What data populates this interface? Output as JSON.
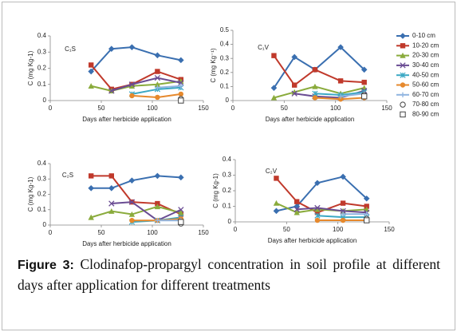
{
  "chart_data": [
    {
      "type": "line",
      "title": "C₁S",
      "y_label": "C (mg Kg-1)",
      "x_label": "Days after herbicide application",
      "x": [
        40,
        60,
        80,
        105,
        128
      ],
      "xlim": [
        0,
        150
      ],
      "xticks": [
        0,
        50,
        100,
        150
      ],
      "ylim": [
        0,
        0.4
      ],
      "yticks": [
        0,
        0.1,
        0.2,
        0.3,
        0.4
      ],
      "series": [
        {
          "name": "0-10 cm",
          "color": "#3a6fb0",
          "marker": "diamond",
          "values": [
            0.18,
            0.32,
            0.33,
            0.28,
            0.25
          ]
        },
        {
          "name": "10-20 cm",
          "color": "#c0392b",
          "marker": "square",
          "values": [
            0.22,
            0.07,
            0.1,
            0.18,
            0.13
          ]
        },
        {
          "name": "20-30 cm",
          "color": "#8aab3c",
          "marker": "triangle",
          "values": [
            0.09,
            0.06,
            0.09,
            0.1,
            0.12
          ]
        },
        {
          "name": "30-40 cm",
          "color": "#6a4c93",
          "marker": "x",
          "values": [
            null,
            0.06,
            0.1,
            0.14,
            0.11
          ]
        },
        {
          "name": "40-50 cm",
          "color": "#3ba8c4",
          "marker": "star",
          "values": [
            null,
            null,
            0.04,
            0.07,
            0.08
          ]
        },
        {
          "name": "50-60 cm",
          "color": "#e6892d",
          "marker": "circle",
          "values": [
            null,
            null,
            0.03,
            0.02,
            0.04
          ]
        },
        {
          "name": "60-70 cm",
          "color": "#8fb4e0",
          "marker": "plus",
          "values": [
            null,
            null,
            null,
            0.08,
            0.09
          ]
        },
        {
          "name": "70-80 cm",
          "color": "#444444",
          "marker": "open-circle",
          "values": [
            null,
            null,
            null,
            null,
            0.01
          ]
        },
        {
          "name": "80-90 cm",
          "color": "#444444",
          "marker": "open-square",
          "values": [
            null,
            null,
            null,
            null,
            0.0
          ]
        }
      ]
    },
    {
      "type": "line",
      "title": "C₁V",
      "y_label": "C (mg Kg⁻¹)",
      "x_label": "Days after herbicide application",
      "x": [
        40,
        60,
        80,
        105,
        128
      ],
      "xlim": [
        0,
        150
      ],
      "xticks": [
        0,
        50,
        100,
        150
      ],
      "ylim": [
        0,
        0.5
      ],
      "yticks": [
        0,
        0.1,
        0.2,
        0.3,
        0.4,
        0.5
      ],
      "series": [
        {
          "values": [
            0.09,
            0.31,
            0.22,
            0.38,
            0.22
          ]
        },
        {
          "values": [
            0.32,
            0.11,
            0.22,
            0.14,
            0.13
          ]
        },
        {
          "values": [
            0.02,
            0.06,
            0.1,
            0.05,
            0.09
          ]
        },
        {
          "values": [
            null,
            0.05,
            0.03,
            0.02,
            0.07
          ]
        },
        {
          "values": [
            null,
            null,
            0.05,
            0.04,
            0.06
          ]
        },
        {
          "values": [
            null,
            null,
            0.02,
            0.01,
            0.02
          ]
        },
        {
          "values": [
            null,
            null,
            null,
            0.03,
            0.05
          ]
        },
        {
          "values": [
            null,
            null,
            null,
            null,
            0.04
          ]
        },
        {
          "values": [
            null,
            null,
            null,
            null,
            0.03
          ]
        }
      ]
    },
    {
      "type": "line",
      "title": "C₂S",
      "y_label": "C (mg Kg-1)",
      "x_label": "Days after herbicide application",
      "x": [
        40,
        60,
        80,
        105,
        128
      ],
      "xlim": [
        0,
        150
      ],
      "xticks": [
        0,
        50,
        100,
        150
      ],
      "ylim": [
        0,
        0.4
      ],
      "yticks": [
        0,
        0.1,
        0.2,
        0.3,
        0.4
      ],
      "series": [
        {
          "values": [
            0.24,
            0.24,
            0.29,
            0.32,
            0.31
          ]
        },
        {
          "values": [
            0.32,
            0.32,
            0.15,
            0.14,
            0.07
          ]
        },
        {
          "values": [
            0.05,
            0.09,
            0.07,
            0.12,
            0.08
          ]
        },
        {
          "values": [
            null,
            0.14,
            0.15,
            0.03,
            0.1
          ]
        },
        {
          "values": [
            null,
            null,
            0.02,
            0.03,
            0.05
          ]
        },
        {
          "values": [
            null,
            null,
            0.03,
            0.03,
            0.04
          ]
        },
        {
          "values": [
            null,
            null,
            null,
            0.03,
            0.03
          ]
        },
        {
          "values": [
            null,
            null,
            null,
            null,
            0.01
          ]
        },
        {
          "values": [
            null,
            null,
            null,
            null,
            0.02
          ]
        }
      ]
    },
    {
      "type": "line",
      "title": "C₂V",
      "y_label": "C (mg Kg-1)",
      "x_label": "Days after herbicide application",
      "x": [
        40,
        60,
        80,
        105,
        128
      ],
      "xlim": [
        0,
        150
      ],
      "xticks": [
        0,
        50,
        100,
        150
      ],
      "ylim": [
        0,
        0.4
      ],
      "yticks": [
        0,
        0.1,
        0.2,
        0.3,
        0.4
      ],
      "series": [
        {
          "values": [
            0.07,
            0.1,
            0.25,
            0.29,
            0.15
          ]
        },
        {
          "values": [
            0.28,
            0.13,
            0.06,
            0.12,
            0.1
          ]
        },
        {
          "values": [
            0.12,
            0.06,
            0.08,
            0.07,
            0.08
          ]
        },
        {
          "values": [
            null,
            0.08,
            0.09,
            0.07,
            0.06
          ]
        },
        {
          "values": [
            null,
            null,
            0.04,
            0.03,
            0.03
          ]
        },
        {
          "values": [
            null,
            null,
            0.01,
            0.01,
            0.01
          ]
        },
        {
          "values": [
            null,
            null,
            null,
            0.05,
            0.05
          ]
        },
        {
          "values": [
            null,
            null,
            null,
            null,
            0.02
          ]
        },
        {
          "values": [
            null,
            null,
            null,
            null,
            0.01
          ]
        }
      ]
    }
  ],
  "caption": {
    "label": "Figure 3:",
    "text": "Clodinafop-propargyl concentration in soil profile at different days after application for different treatments"
  }
}
